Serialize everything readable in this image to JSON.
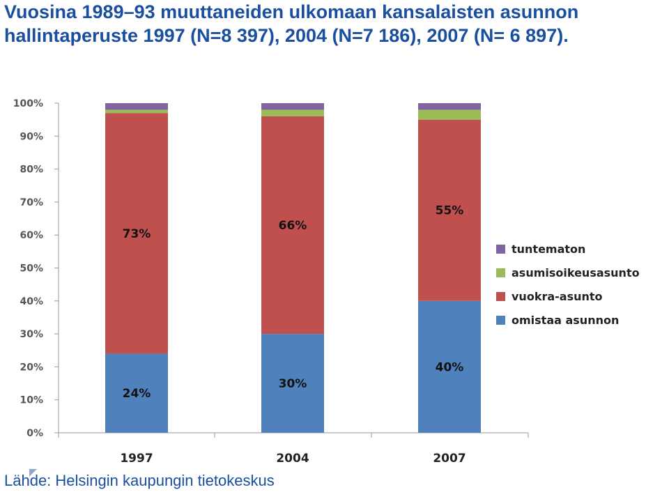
{
  "title": "Vuosina 1989–93 muuttaneiden ulkomaan kansalaisten asunnon hallintaperuste 1997 (N=8 397), 2004 (N=7 186),  2007 (N= 6 897).",
  "source": "Lähde: Helsingin kaupungin tietokeskus",
  "colors": {
    "omistaa asunnon": "#4f81bd",
    "vuokra-asunto": "#c0504d",
    "asumisoikeusasunto": "#9bbb59",
    "tuntematon": "#8064a2"
  },
  "chart_data": {
    "type": "bar",
    "stacked": true,
    "categories": [
      "1997",
      "2004",
      "2007"
    ],
    "series": [
      {
        "name": "omistaa asunnon",
        "values": [
          24,
          30,
          40
        ],
        "labels": [
          "24%",
          "30%",
          "40%"
        ]
      },
      {
        "name": "vuokra-asunto",
        "values": [
          73,
          66,
          55
        ],
        "labels": [
          "73%",
          "66%",
          "55%"
        ]
      },
      {
        "name": "asumisoikeusasunto",
        "values": [
          1,
          2,
          3
        ]
      },
      {
        "name": "tuntematon",
        "values": [
          2,
          2,
          2
        ]
      }
    ],
    "yticks": [
      "0%",
      "10%",
      "20%",
      "30%",
      "40%",
      "50%",
      "60%",
      "70%",
      "80%",
      "90%",
      "100%"
    ],
    "ylim": [
      0,
      100
    ],
    "xlabel": "",
    "ylabel": "",
    "grid": false,
    "legend_position": "right",
    "legend_order": [
      "tuntematon",
      "asumisoikeusasunto",
      "vuokra-asunto",
      "omistaa asunnon"
    ]
  }
}
